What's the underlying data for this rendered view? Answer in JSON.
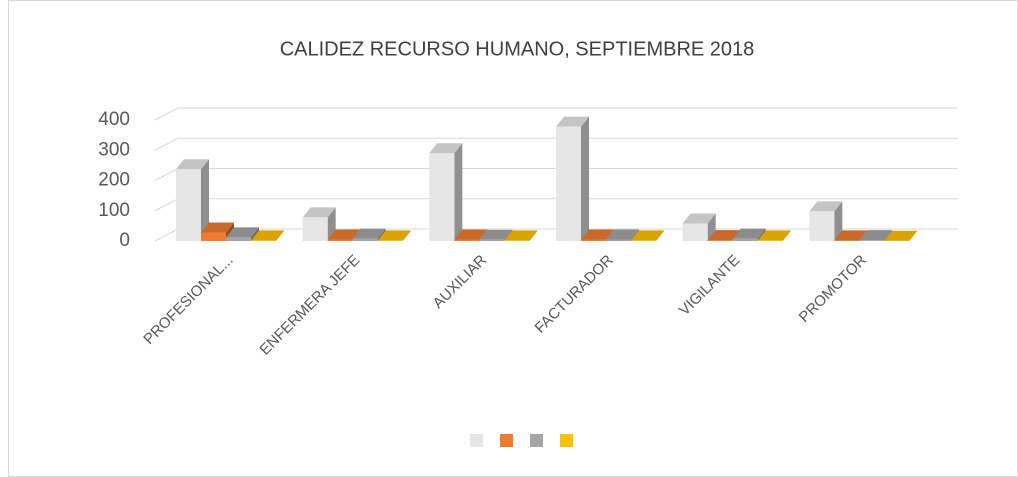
{
  "chart_data": {
    "type": "bar3d",
    "title": "CALIDEZ RECURSO HUMANO, SEPTIEMBRE 2018",
    "categories": [
      "PROFESIONAL...",
      "ENFERMERA JEFE",
      "AUXILIAR",
      "FACTURADOR",
      "VIGILANTE",
      "PROMOTOR"
    ],
    "series": [
      {
        "color": "#e7e6e6",
        "values": [
          237,
          78,
          290,
          378,
          58,
          98
        ]
      },
      {
        "color": "#ed7d31",
        "values": [
          28,
          5,
          5,
          5,
          3,
          2
        ]
      },
      {
        "color": "#a5a5a5",
        "values": [
          12,
          8,
          4,
          5,
          8,
          3
        ]
      },
      {
        "color": "#ffc000",
        "values": [
          2,
          2,
          2,
          2,
          2,
          1
        ]
      }
    ],
    "ylim": [
      0,
      400
    ],
    "yticks": [
      0,
      100,
      200,
      300,
      400
    ],
    "grid": true
  }
}
